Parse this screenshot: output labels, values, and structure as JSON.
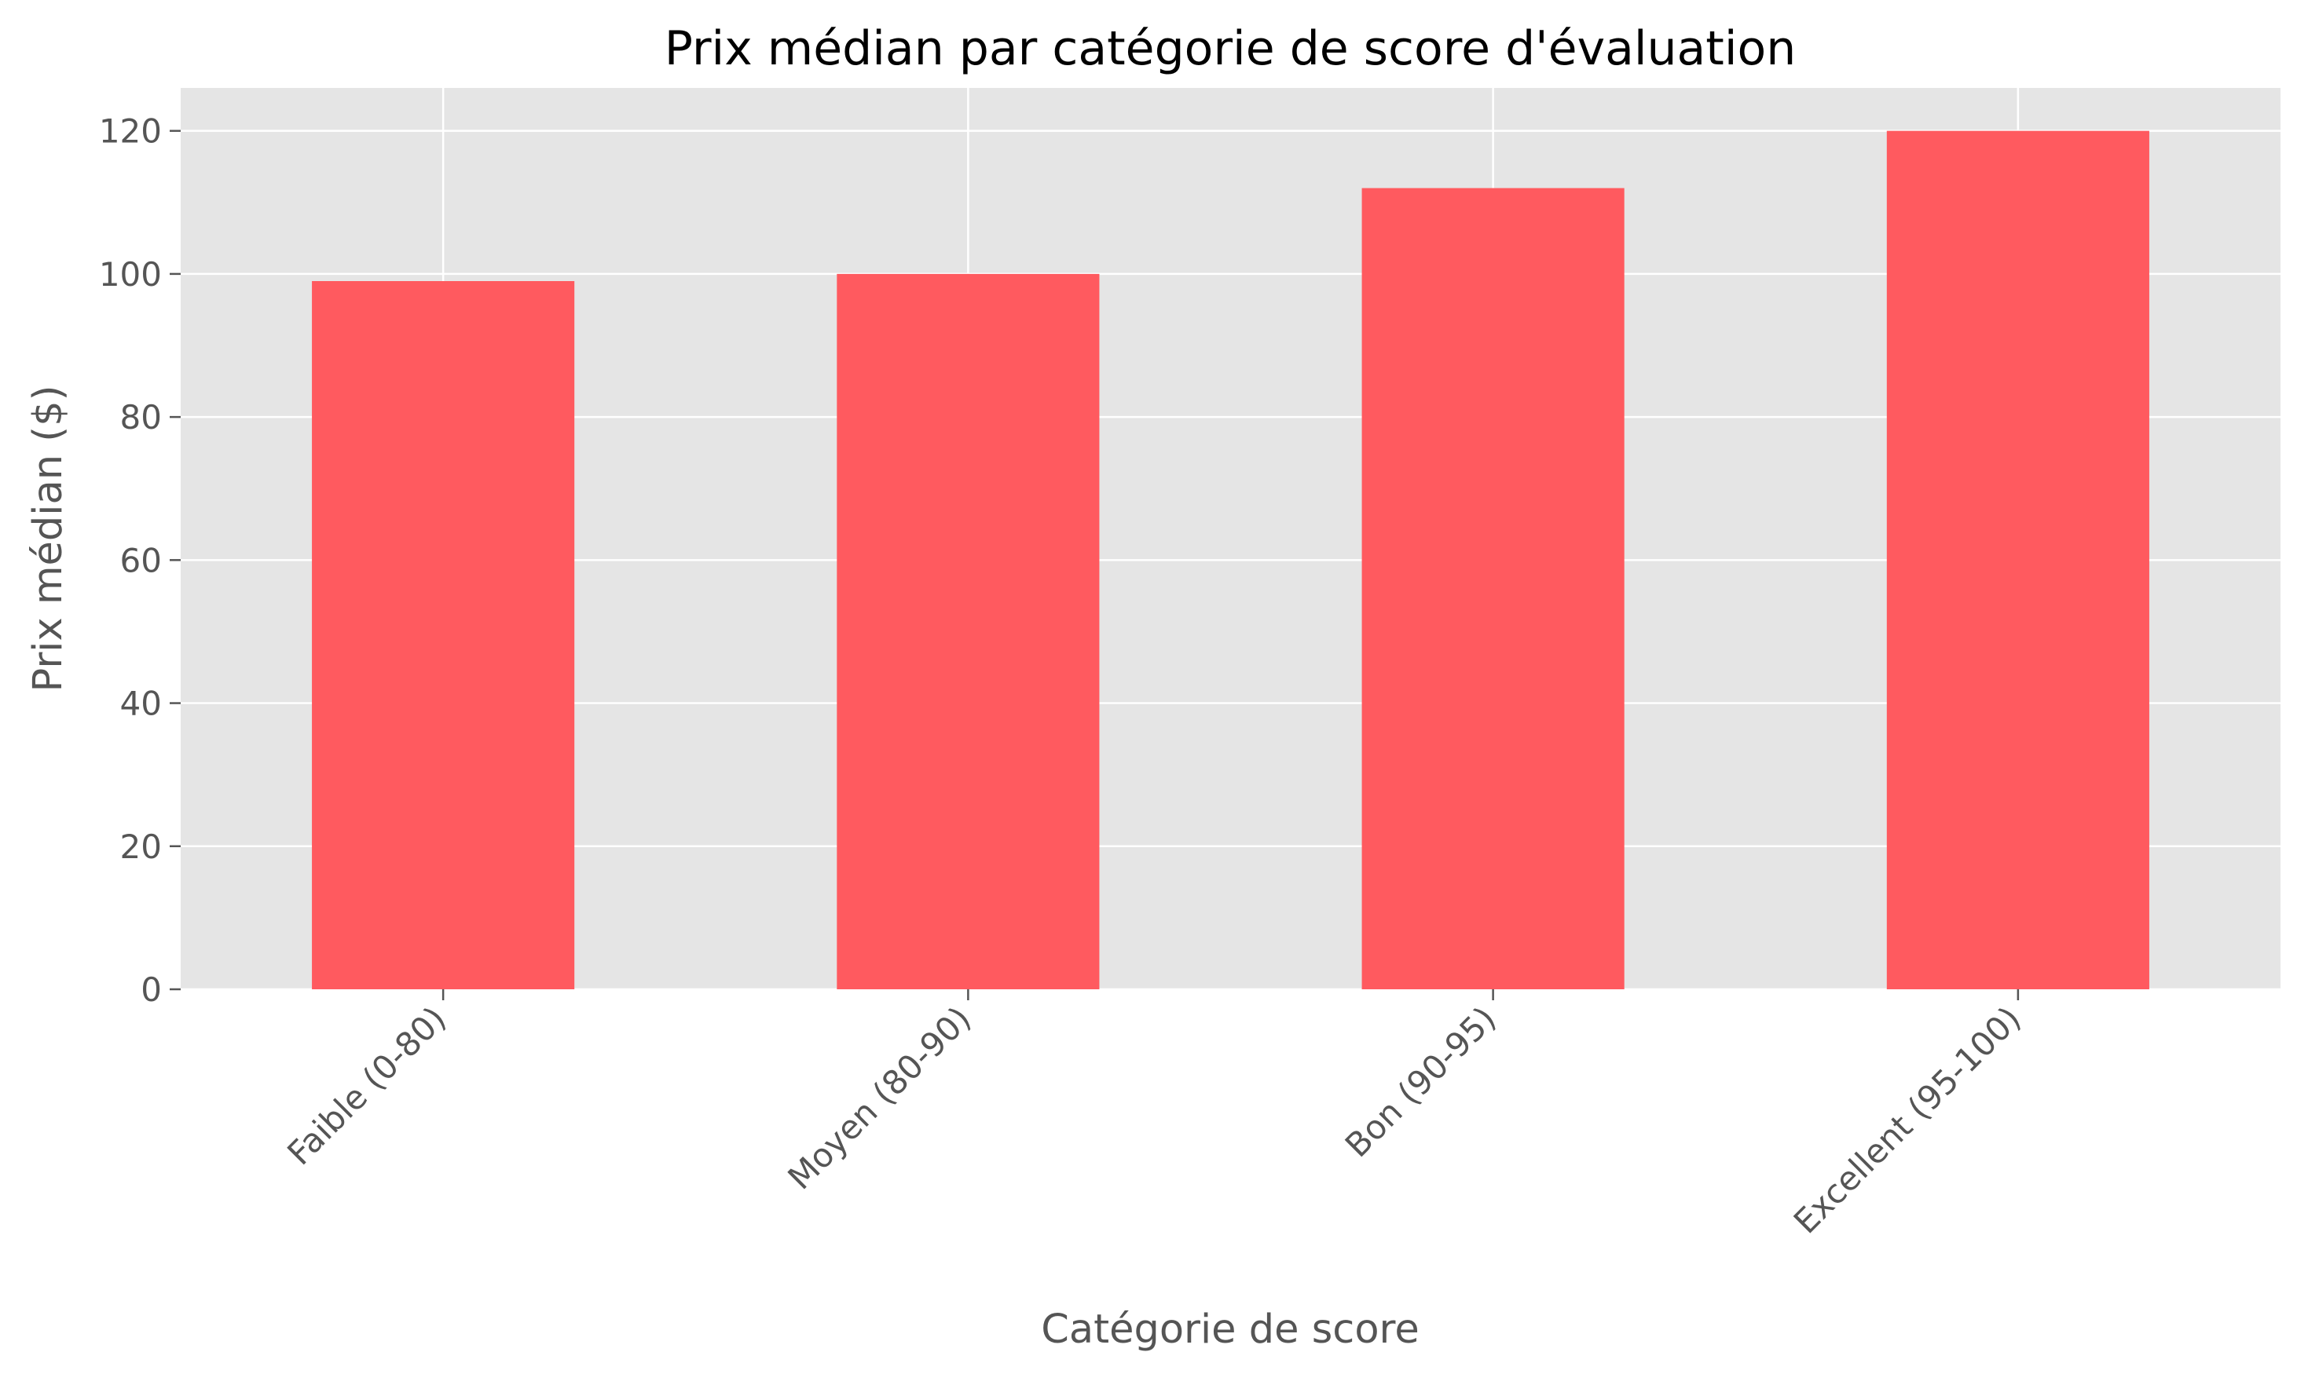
{
  "chart_data": {
    "type": "bar",
    "title": "Prix médian par catégorie de score d'évaluation",
    "xlabel": "Catégorie de score",
    "ylabel": "Prix médian ($)",
    "categories": [
      "Faible (0-80)",
      "Moyen (80-90)",
      "Bon (90-95)",
      "Excellent (95-100)"
    ],
    "values": [
      99,
      100,
      112,
      120
    ],
    "ylim": [
      0,
      126
    ],
    "yticks": [
      0,
      20,
      40,
      60,
      80,
      100,
      120
    ],
    "grid": true,
    "legend": "none",
    "bar_color": "#ff5a5f",
    "plot_background": "#e5e5e5"
  }
}
